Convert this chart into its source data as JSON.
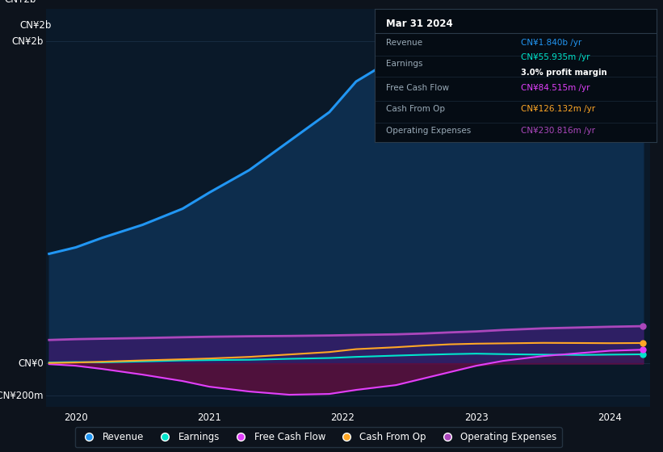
{
  "bg_color": "#0d131c",
  "plot_bg_color": "#0a1929",
  "title_text": "Mar 31 2024",
  "tooltip": {
    "Revenue": {
      "value": "CN¥1.840b /yr",
      "color": "#2196f3"
    },
    "Earnings": {
      "value": "CN¥55.935m /yr",
      "color": "#00e5cc"
    },
    "profit_margin": "3.0% profit margin",
    "Free Cash Flow": {
      "value": "CN¥84.515m /yr",
      "color": "#e040fb"
    },
    "Cash From Op": {
      "value": "CN¥126.132m /yr",
      "color": "#ffa726"
    },
    "Operating Expenses": {
      "value": "CN¥230.816m /yr",
      "color": "#ab47bc"
    }
  },
  "x_years": [
    2019.8,
    2020.0,
    2020.2,
    2020.5,
    2020.8,
    2021.0,
    2021.3,
    2021.6,
    2021.9,
    2022.1,
    2022.4,
    2022.6,
    2022.8,
    2023.0,
    2023.2,
    2023.5,
    2023.8,
    2024.0,
    2024.25
  ],
  "revenue": [
    680,
    720,
    780,
    860,
    960,
    1060,
    1200,
    1380,
    1560,
    1750,
    1900,
    1980,
    2020,
    2040,
    2020,
    1970,
    1910,
    1860,
    1840
  ],
  "earnings": [
    5,
    8,
    6,
    12,
    18,
    20,
    22,
    28,
    33,
    40,
    48,
    53,
    57,
    60,
    57,
    54,
    52,
    54,
    55.935
  ],
  "free_cash_flow": [
    -5,
    -15,
    -35,
    -70,
    -110,
    -145,
    -175,
    -195,
    -190,
    -165,
    -135,
    -95,
    -55,
    -15,
    15,
    45,
    65,
    78,
    84.515
  ],
  "cash_from_op": [
    2,
    5,
    10,
    18,
    25,
    30,
    40,
    55,
    70,
    88,
    100,
    110,
    118,
    122,
    124,
    127,
    126,
    125,
    126.132
  ],
  "operating_expenses": [
    145,
    150,
    153,
    157,
    162,
    165,
    168,
    170,
    173,
    176,
    180,
    185,
    192,
    198,
    207,
    217,
    223,
    227,
    230.816
  ],
  "ylim": [
    -270,
    2200
  ],
  "ytick_vals": [
    -200,
    0,
    2000
  ],
  "ytick_labels": [
    "-CN¥200m",
    "CN¥0",
    "CN¥2b"
  ],
  "xtick_years": [
    2020,
    2021,
    2022,
    2023,
    2024
  ],
  "legend": [
    {
      "label": "Revenue",
      "color": "#2196f3"
    },
    {
      "label": "Earnings",
      "color": "#00e5cc"
    },
    {
      "label": "Free Cash Flow",
      "color": "#e040fb"
    },
    {
      "label": "Cash From Op",
      "color": "#ffa726"
    },
    {
      "label": "Operating Expenses",
      "color": "#ab47bc"
    }
  ],
  "grid_color": "#1a2e44",
  "fill_color_revenue": "#0d2d4d",
  "fill_color_fcf_neg": "#5c1040",
  "fill_color_opex": "#3d1a6e",
  "tooltip_bg": "#050c14",
  "tooltip_border": "#2a3a4a"
}
